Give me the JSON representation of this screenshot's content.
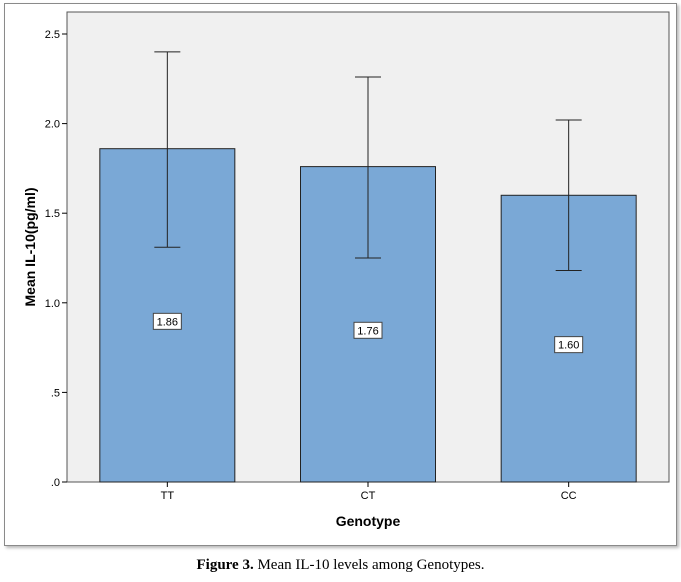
{
  "caption": {
    "label": "Figure 3.",
    "text": " Mean IL-10 levels among Genotypes."
  },
  "colors": {
    "bar": "#7aa8d6",
    "plot_bg": "#f0f0f0",
    "frame": "#8a8a8a"
  },
  "chart_data": {
    "type": "bar",
    "title": "",
    "xlabel": "Genotype",
    "ylabel": "Mean IL-10(pg/ml)",
    "categories": [
      "TT",
      "CT",
      "CC"
    ],
    "values": [
      1.86,
      1.76,
      1.6
    ],
    "value_labels": [
      "1.86",
      "1.76",
      "1.60"
    ],
    "error_low": [
      1.31,
      1.25,
      1.18
    ],
    "error_high": [
      2.4,
      2.26,
      2.02
    ],
    "ylim": [
      0,
      2.5
    ],
    "yticks": [
      0,
      0.5,
      1.0,
      1.5,
      2.0,
      2.5
    ],
    "ytick_labels": [
      ".0",
      ".5",
      "1.0",
      "1.5",
      "2.0",
      "2.5"
    ],
    "grid": false
  }
}
